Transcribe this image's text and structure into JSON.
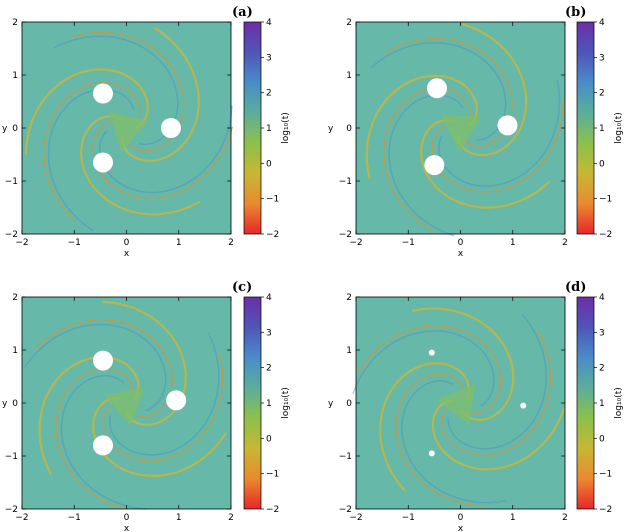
{
  "chart_data": [
    {
      "type": "heatmap",
      "panel_label": "(a)",
      "xlabel": "x",
      "ylabel": "y",
      "colorbar_label": "log₁₀(t)",
      "xlim": [
        -2,
        2
      ],
      "ylim": [
        -2,
        2
      ],
      "xticks": [
        -2,
        -1,
        0,
        1,
        2
      ],
      "yticks": [
        -2,
        -1,
        0,
        1,
        2
      ],
      "colorbar_range": [
        -2,
        4
      ],
      "colorbar_ticks": [
        -2,
        -1,
        0,
        1,
        2,
        3,
        4
      ],
      "dominant_value": 2,
      "white_regions": [
        [
          -0.45,
          0.65
        ],
        [
          0.85,
          0.0
        ],
        [
          -0.45,
          -0.65
        ]
      ]
    },
    {
      "type": "heatmap",
      "panel_label": "(b)",
      "xlabel": "x",
      "ylabel": "y",
      "colorbar_label": "log₁₀(t)",
      "xlim": [
        -2,
        2
      ],
      "ylim": [
        -2,
        2
      ],
      "xticks": [
        -2,
        -1,
        0,
        1,
        2
      ],
      "yticks": [
        -2,
        -1,
        0,
        1,
        2
      ],
      "colorbar_range": [
        -2,
        4
      ],
      "colorbar_ticks": [
        -2,
        -1,
        0,
        1,
        2,
        3,
        4
      ],
      "dominant_value": 2,
      "white_regions": [
        [
          -0.45,
          0.75
        ],
        [
          0.9,
          0.05
        ],
        [
          -0.5,
          -0.7
        ]
      ]
    },
    {
      "type": "heatmap",
      "panel_label": "(c)",
      "xlabel": "x",
      "ylabel": "y",
      "colorbar_label": "log₁₀(t)",
      "xlim": [
        -2,
        2
      ],
      "ylim": [
        -2,
        2
      ],
      "xticks": [
        -2,
        -1,
        0,
        1,
        2
      ],
      "yticks": [
        -2,
        -1,
        0,
        1,
        2
      ],
      "colorbar_range": [
        -2,
        4
      ],
      "colorbar_ticks": [
        -2,
        -1,
        0,
        1,
        2,
        3,
        4
      ],
      "dominant_value": 2,
      "white_regions": [
        [
          -0.45,
          0.8
        ],
        [
          0.95,
          0.05
        ],
        [
          -0.45,
          -0.8
        ]
      ]
    },
    {
      "type": "heatmap",
      "panel_label": "(d)",
      "xlabel": "x",
      "ylabel": "y",
      "colorbar_label": "log₁₀(t)",
      "xlim": [
        -2,
        2
      ],
      "ylim": [
        -2,
        2
      ],
      "xticks": [
        -2,
        -1,
        0,
        1,
        2
      ],
      "yticks": [
        -2,
        -1,
        0,
        1,
        2
      ],
      "colorbar_range": [
        -2,
        4
      ],
      "colorbar_ticks": [
        -2,
        -1,
        0,
        1,
        2,
        3,
        4
      ],
      "dominant_value": 1.5,
      "white_regions": [
        [
          -0.55,
          0.95
        ],
        [
          1.2,
          -0.05
        ],
        [
          -0.55,
          -0.95
        ]
      ]
    }
  ],
  "colormap": [
    "#e8262b",
    "#e98a30",
    "#c7b733",
    "#8cc04c",
    "#5aae9a",
    "#4a8cc9",
    "#4f55b8",
    "#6b2fa8"
  ],
  "map_color": "#66b8a8"
}
